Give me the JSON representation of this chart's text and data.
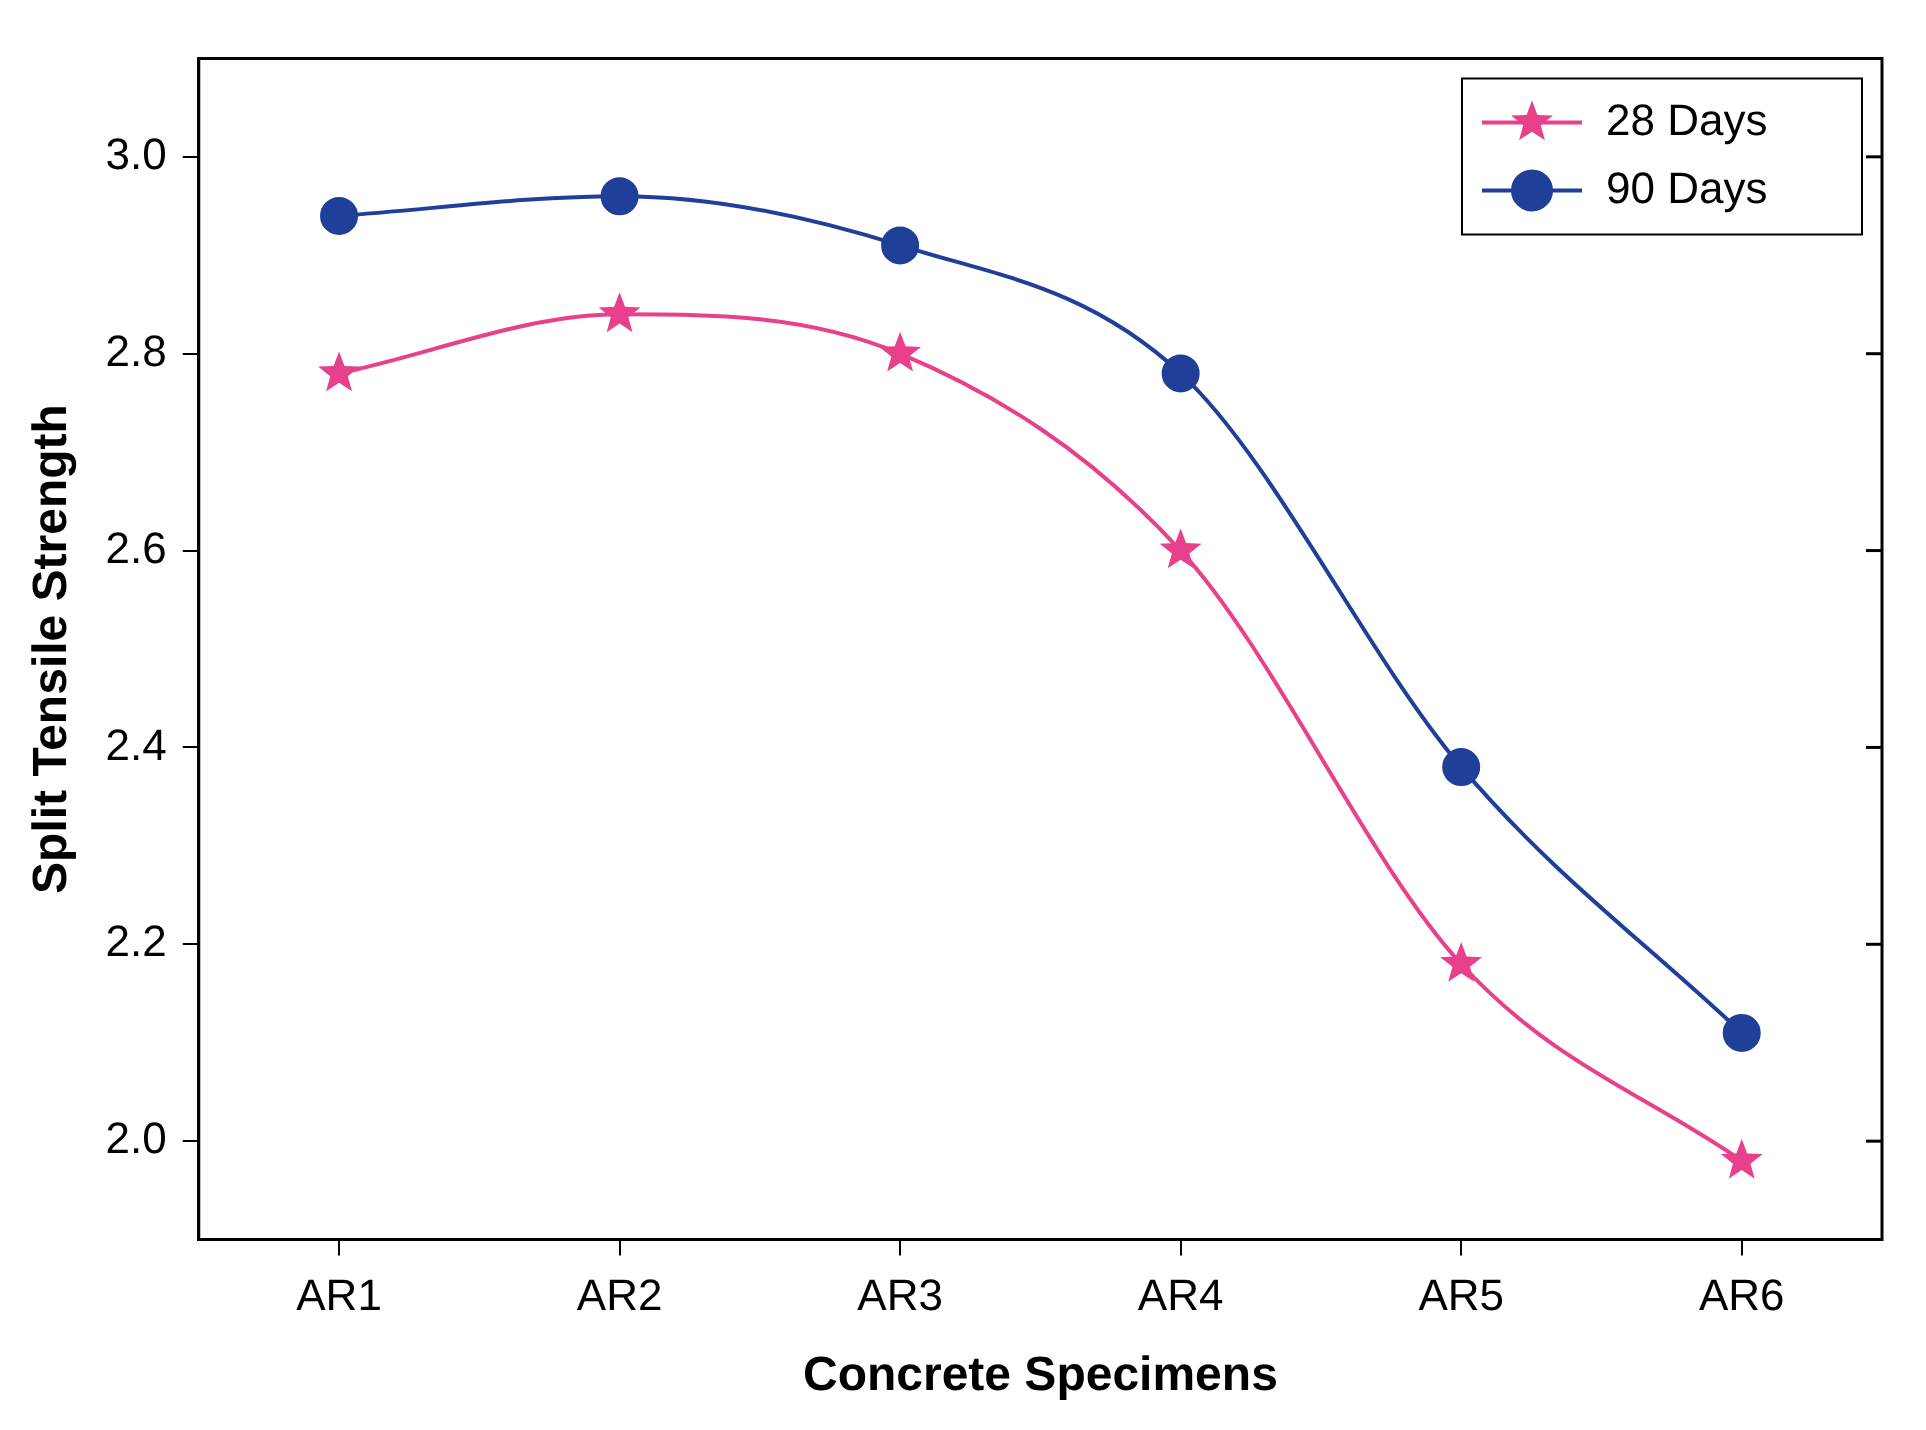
{
  "chart_data": {
    "type": "line",
    "xlabel": "Concrete Specimens",
    "ylabel": "Split Tensile Strength",
    "categories": [
      "AR1",
      "AR2",
      "AR3",
      "AR4",
      "AR5",
      "AR6"
    ],
    "series": [
      {
        "name": "28 Days",
        "color": "#e8408a",
        "marker": "star",
        "values": [
          2.78,
          2.84,
          2.8,
          2.6,
          2.18,
          1.98
        ]
      },
      {
        "name": "90 Days",
        "color": "#1f3f99",
        "marker": "circle",
        "values": [
          2.94,
          2.96,
          2.91,
          2.78,
          2.38,
          2.11
        ]
      }
    ],
    "ylim": [
      1.9,
      3.1
    ],
    "yticks": [
      {
        "value": 2.0,
        "label": "2.0"
      },
      {
        "value": 2.2,
        "label": "2.2"
      },
      {
        "value": 2.4,
        "label": "2.4"
      },
      {
        "value": 2.6,
        "label": "2.6"
      },
      {
        "value": 2.8,
        "label": "2.8"
      },
      {
        "value": 3.0,
        "label": "3.0"
      }
    ],
    "grid": false,
    "legend": "top right",
    "line_style": "solid"
  }
}
